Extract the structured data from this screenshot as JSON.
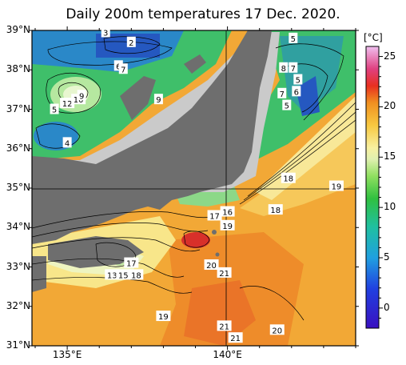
{
  "title": "Daily 200m temperatures 17 Dec. 2020.",
  "lat_labels": [
    "39°N",
    "38°N",
    "37°N",
    "36°N",
    "35°N",
    "34°N",
    "33°N",
    "32°N",
    "31°N"
  ],
  "lon_labels": [
    "135°E",
    "140°E"
  ],
  "colorbar": {
    "unit": "[°C]",
    "ticks": [
      "25",
      "20",
      "15",
      "10",
      "5",
      "0"
    ],
    "range": [
      -2,
      26
    ]
  },
  "map_colors": {
    "land": "#6e6e6e",
    "shelf": "#c8c8c8",
    "cold": "#2060c0",
    "cool": "#30c060",
    "mild": "#e8f0a0",
    "warm": "#f0b040",
    "hot": "#e04020"
  },
  "contour_labels": [
    {
      "text": "3",
      "lon": 136.2,
      "lat": 38.95
    },
    {
      "text": "2",
      "lon": 137.0,
      "lat": 38.7
    },
    {
      "text": "5",
      "lon": 134.6,
      "lat": 37.0
    },
    {
      "text": "12",
      "lon": 135.0,
      "lat": 37.15
    },
    {
      "text": "10",
      "lon": 135.35,
      "lat": 37.25
    },
    {
      "text": "9",
      "lon": 135.45,
      "lat": 37.35
    },
    {
      "text": "6",
      "lon": 136.6,
      "lat": 38.1
    },
    {
      "text": "7",
      "lon": 136.75,
      "lat": 38.02
    },
    {
      "text": "9",
      "lon": 137.85,
      "lat": 37.25
    },
    {
      "text": "4",
      "lon": 135.0,
      "lat": 36.15
    },
    {
      "text": "5",
      "lon": 142.05,
      "lat": 38.8
    },
    {
      "text": "8",
      "lon": 141.75,
      "lat": 38.05
    },
    {
      "text": "7",
      "lon": 142.05,
      "lat": 38.05
    },
    {
      "text": "5",
      "lon": 142.2,
      "lat": 37.75
    },
    {
      "text": "7",
      "lon": 141.7,
      "lat": 37.4
    },
    {
      "text": "6",
      "lon": 142.15,
      "lat": 37.45
    },
    {
      "text": "5",
      "lon": 141.85,
      "lat": 37.1
    },
    {
      "text": "18",
      "lon": 141.9,
      "lat": 35.25
    },
    {
      "text": "19",
      "lon": 143.4,
      "lat": 35.05
    },
    {
      "text": "18",
      "lon": 141.5,
      "lat": 34.45
    },
    {
      "text": "17",
      "lon": 139.6,
      "lat": 34.3
    },
    {
      "text": "16",
      "lon": 140.0,
      "lat": 34.4
    },
    {
      "text": "19",
      "lon": 140.0,
      "lat": 34.05
    },
    {
      "text": "17",
      "lon": 137.0,
      "lat": 33.1
    },
    {
      "text": "13",
      "lon": 136.4,
      "lat": 32.8
    },
    {
      "text": "15",
      "lon": 136.75,
      "lat": 32.8
    },
    {
      "text": "18",
      "lon": 137.15,
      "lat": 32.8
    },
    {
      "text": "20",
      "lon": 139.5,
      "lat": 33.05
    },
    {
      "text": "21",
      "lon": 139.9,
      "lat": 32.85
    },
    {
      "text": "19",
      "lon": 138.0,
      "lat": 31.75
    },
    {
      "text": "21",
      "lon": 139.9,
      "lat": 31.5
    },
    {
      "text": "20",
      "lon": 141.55,
      "lat": 31.4
    },
    {
      "text": "21",
      "lon": 140.25,
      "lat": 31.2
    }
  ]
}
